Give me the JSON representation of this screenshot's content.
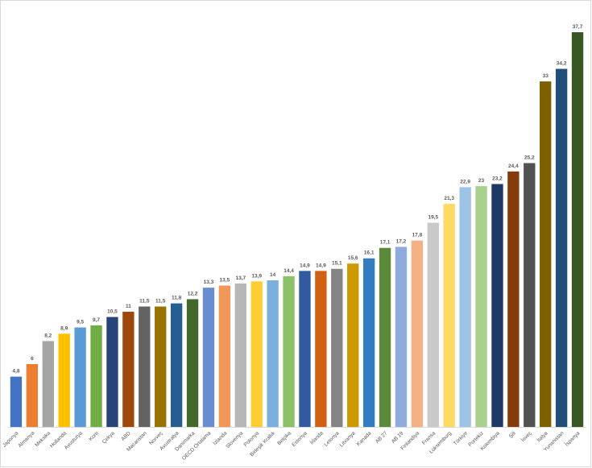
{
  "chart_data": {
    "type": "bar",
    "categories": [
      "Japonya",
      "Almanya",
      "Meksika",
      "Hollanda",
      "Avusturya",
      "Kore",
      "Çekya",
      "ABD",
      "Macaristan",
      "Norveç",
      "Avustralya",
      "Danimarka",
      "OECD Ortalama",
      "İzlanda",
      "Slovenya",
      "Polonya",
      "Birleşik Krallık",
      "Belçika",
      "Estonya",
      "İrlanda",
      "Letonya",
      "Litvanya",
      "Kanada",
      "AB 27",
      "AB 19",
      "Finlandiya",
      "Fransa",
      "Lüksemburg",
      "Türkiye",
      "Portekiz",
      "Kolombiya",
      "Şili",
      "İsveç",
      "İtalya",
      "Yunanistan",
      "İspanya"
    ],
    "values": [
      4.8,
      6,
      8.2,
      8.9,
      9.5,
      9.7,
      10.5,
      11,
      11.5,
      11.5,
      11.8,
      12.2,
      13.3,
      13.5,
      13.7,
      13.9,
      14,
      14.4,
      14.9,
      14.9,
      15.1,
      15.6,
      16.1,
      17.1,
      17.2,
      17.8,
      19.5,
      21.3,
      22.9,
      23,
      23.2,
      24.4,
      25.2,
      33,
      34.2,
      37.7
    ],
    "value_labels": [
      "4,8",
      "6",
      "8,2",
      "8,9",
      "9,5",
      "9,7",
      "10,5",
      "11",
      "11,5",
      "11,5",
      "11,8",
      "12,2",
      "13,3",
      "13,5",
      "13,7",
      "13,9",
      "14",
      "14,4",
      "14,9",
      "14,9",
      "15,1",
      "15,6",
      "16,1",
      "17,1",
      "17,2",
      "17,8",
      "19,5",
      "21,3",
      "22,9",
      "23",
      "23,2",
      "24,4",
      "25,2",
      "33",
      "34,2",
      "37,7"
    ],
    "colors": [
      "#4472c4",
      "#ed7d31",
      "#a5a5a5",
      "#ffc000",
      "#5b9bd5",
      "#70ad47",
      "#264478",
      "#9e480e",
      "#636363",
      "#997300",
      "#255e91",
      "#43682b",
      "#698ed0",
      "#f1975a",
      "#b7b7b7",
      "#ffcd33",
      "#7cafdd",
      "#8cc168",
      "#335aa1",
      "#d26012",
      "#848484",
      "#cc9a00",
      "#327dc2",
      "#5a8a39",
      "#8faadc",
      "#f4b183",
      "#c9c9c9",
      "#ffd966",
      "#9dc3e6",
      "#a9d18e",
      "#203864",
      "#843c0c",
      "#525252",
      "#7f6000",
      "#1f4e79",
      "#385723"
    ]
  }
}
